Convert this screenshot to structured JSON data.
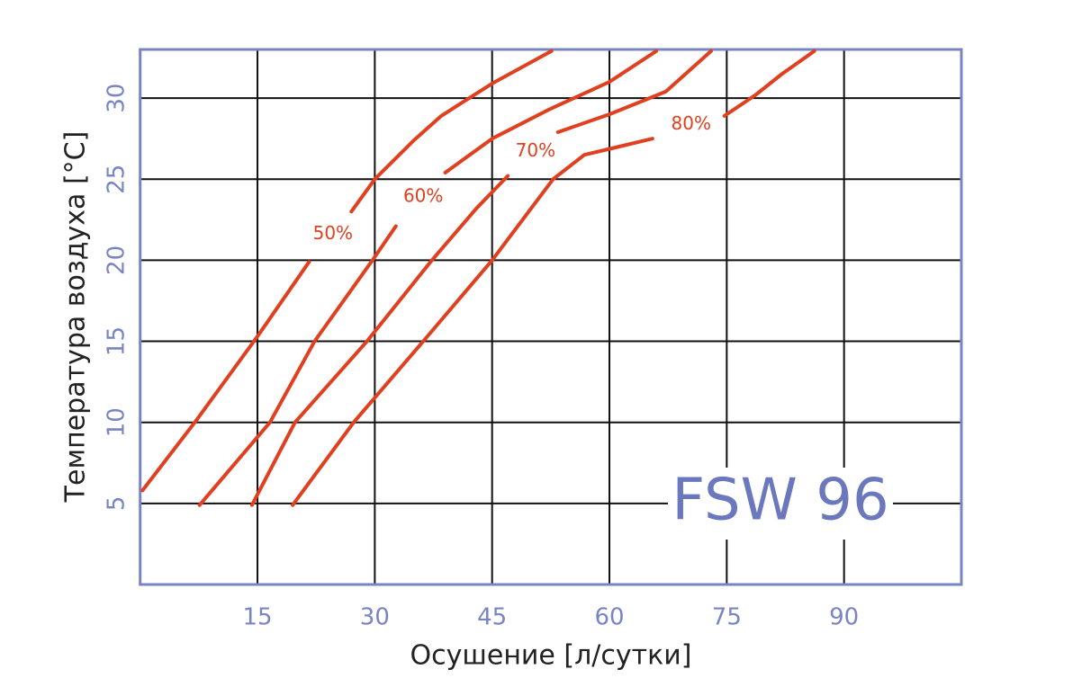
{
  "chart_data": {
    "type": "line",
    "annotation": "FSW 96",
    "x_label": "Осушение [л/сутки]",
    "y_label": "Температура воздуха [°C]",
    "xlim": [
      0,
      105
    ],
    "xticks": [
      15,
      30,
      45,
      60,
      75,
      90
    ],
    "ylim": [
      0,
      33
    ],
    "yticks": [
      5,
      10,
      15,
      20,
      25,
      30
    ],
    "grid": true,
    "series": [
      {
        "name": "50%",
        "color": "#e0401f",
        "x": [
          0.3,
          7.3,
          15,
          21.6,
          null,
          27,
          30,
          35,
          38.5,
          45,
          52.6
        ],
        "values": [
          5.8,
          10.2,
          15.3,
          19.9,
          null,
          23,
          25,
          27.4,
          28.9,
          30.9,
          32.9
        ]
      },
      {
        "name": "60%",
        "color": "#e0401f",
        "x": [
          7.6,
          16.6,
          22.3,
          29.7,
          32.7,
          null,
          39,
          45,
          52.3,
          60,
          66
        ],
        "values": [
          4.9,
          10,
          15,
          20,
          22.1,
          null,
          25.4,
          27.5,
          29.3,
          31,
          32.9
        ]
      },
      {
        "name": "70%",
        "color": "#e0401f",
        "x": [
          14.3,
          19.8,
          29,
          37.3,
          43,
          47,
          null,
          53.4,
          60,
          67.2,
          73
        ],
        "values": [
          4.9,
          10,
          15,
          20,
          23.2,
          25.2,
          null,
          27.9,
          29,
          30.4,
          32.9
        ]
      },
      {
        "name": "80%",
        "color": "#e0401f",
        "x": [
          19.5,
          27.3,
          36.2,
          45,
          52.8,
          56.8,
          60.3,
          65.5,
          null,
          74.7,
          78.7,
          82.1,
          86.2
        ],
        "values": [
          4.9,
          10,
          15,
          20,
          25,
          26.5,
          26.9,
          27.5,
          null,
          28.9,
          30.2,
          31.5,
          32.9
        ]
      }
    ]
  }
}
